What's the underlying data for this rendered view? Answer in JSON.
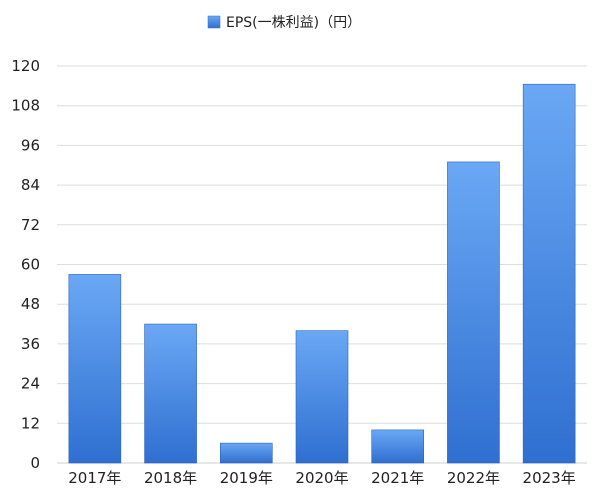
{
  "chart_data": {
    "type": "bar",
    "categories": [
      "2017年",
      "2018年",
      "2019年",
      "2020年",
      "2021年",
      "2022年",
      "2023年"
    ],
    "series": [
      {
        "name": "EPS(一株利益)（円）",
        "values": [
          57,
          42,
          6,
          40,
          10,
          91,
          114.5
        ]
      }
    ],
    "ylim": [
      0,
      120
    ],
    "yticks": [
      0,
      12,
      24,
      36,
      48,
      60,
      72,
      84,
      96,
      108,
      120
    ],
    "grid": true,
    "legend_position": "top-center",
    "bar_color_top": "#6aa8f5",
    "bar_color_bottom": "#2f6fd0"
  }
}
